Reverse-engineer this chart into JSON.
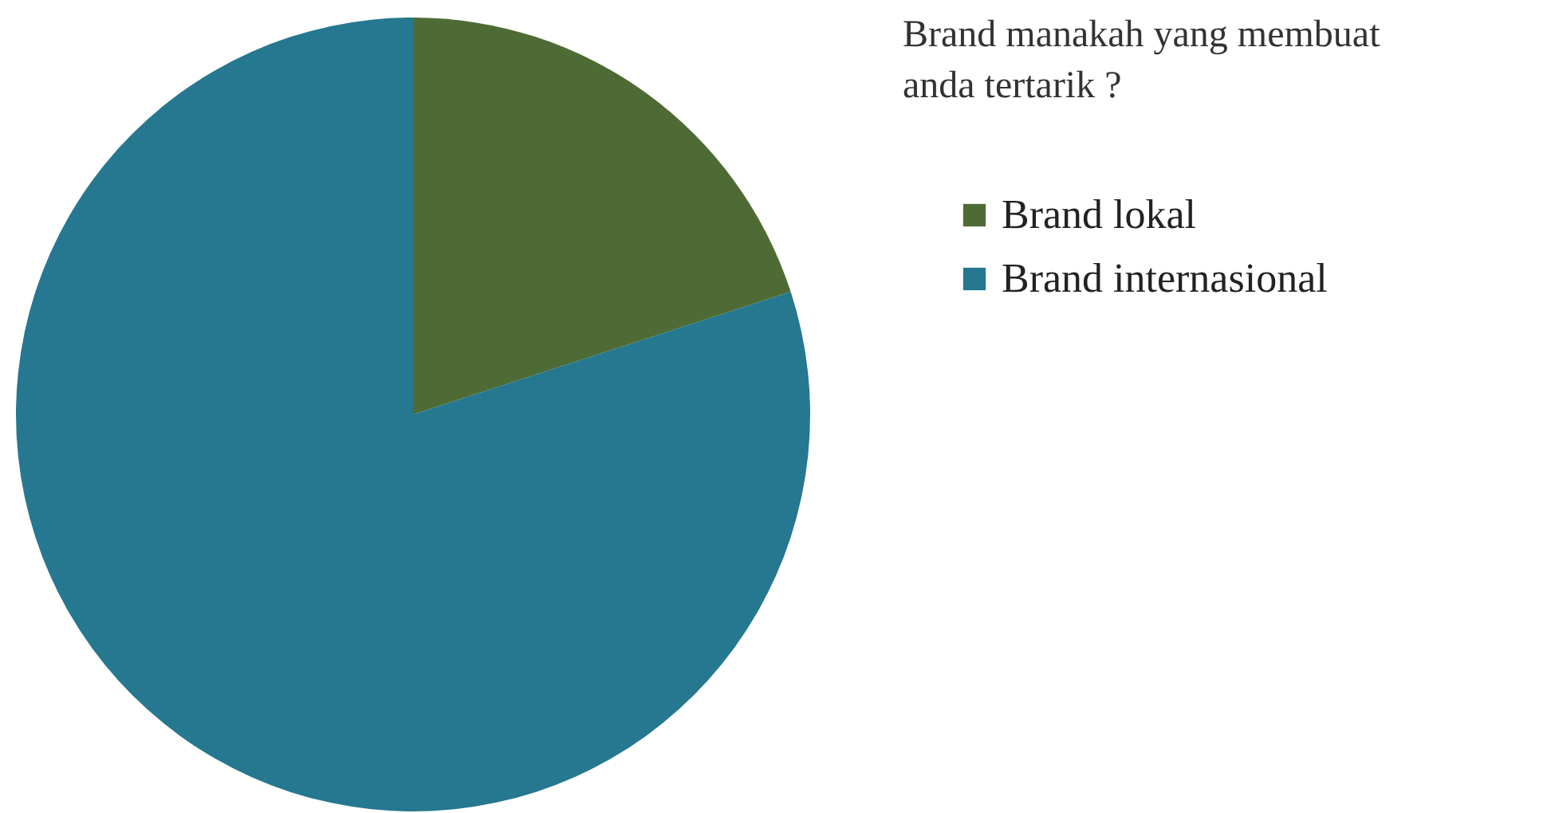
{
  "chart_data": {
    "type": "pie",
    "title": "Brand manakah yang membuat\nanda tertarik ?",
    "categories": [
      "Brand lokal",
      "Brand internasional"
    ],
    "values": [
      20,
      80
    ],
    "colors": [
      "#4e6b35",
      "#25788f"
    ],
    "legend": "top right"
  }
}
